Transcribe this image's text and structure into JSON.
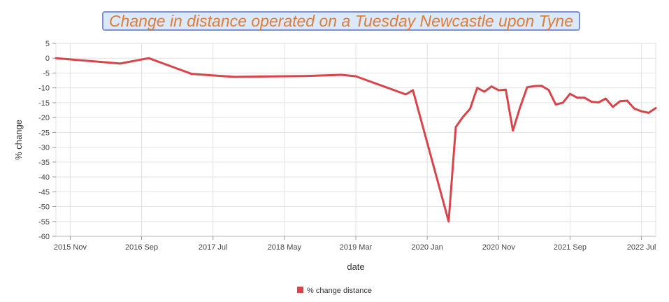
{
  "chart_data": {
    "type": "line",
    "title": "Change in distance operated on a Tuesday Newcastle upon Tyne",
    "xlabel": "date",
    "ylabel": "% change",
    "ylim": [
      -60,
      5
    ],
    "yticks": [
      5,
      0,
      -5,
      -10,
      -15,
      -20,
      -25,
      -30,
      -35,
      -40,
      -45,
      -50,
      -55,
      -60
    ],
    "xticks": [
      "2015 Nov",
      "2016 Sep",
      "2017 Jul",
      "2018 May",
      "2019 Mar",
      "2020 Jan",
      "2020 Nov",
      "2021 Sep",
      "2022 Jul"
    ],
    "grid": true,
    "legend_position": "bottom",
    "series": [
      {
        "name": "% change distance",
        "color": "#d9434a",
        "x": [
          "2015-09",
          "2016-06",
          "2016-10",
          "2017-04",
          "2017-10",
          "2018-08",
          "2019-01",
          "2019-03",
          "2019-10",
          "2019-11",
          "2020-04",
          "2020-05",
          "2020-06",
          "2020-07",
          "2020-08",
          "2020-09",
          "2020-10",
          "2020-11",
          "2020-12",
          "2021-01",
          "2021-02",
          "2021-03",
          "2021-04",
          "2021-05",
          "2021-06",
          "2021-07",
          "2021-08",
          "2021-09",
          "2021-10",
          "2021-11",
          "2021-12",
          "2022-01",
          "2022-02",
          "2022-03",
          "2022-04",
          "2022-05",
          "2022-06",
          "2022-07",
          "2022-08",
          "2022-09"
        ],
        "values": [
          0,
          -1.8,
          0,
          -5.3,
          -6.3,
          -6.0,
          -5.6,
          -6.1,
          -12.2,
          -10.8,
          -55.0,
          -23.2,
          -19.8,
          -17.1,
          -10.0,
          -11.3,
          -9.5,
          -10.8,
          -10.6,
          -24.4,
          -16.6,
          -9.8,
          -9.4,
          -9.3,
          -10.7,
          -15.6,
          -15.0,
          -12.0,
          -13.3,
          -13.3,
          -14.7,
          -14.9,
          -13.6,
          -16.4,
          -14.5,
          -14.3,
          -17.0,
          -17.9,
          -18.4,
          -16.8
        ]
      }
    ]
  }
}
